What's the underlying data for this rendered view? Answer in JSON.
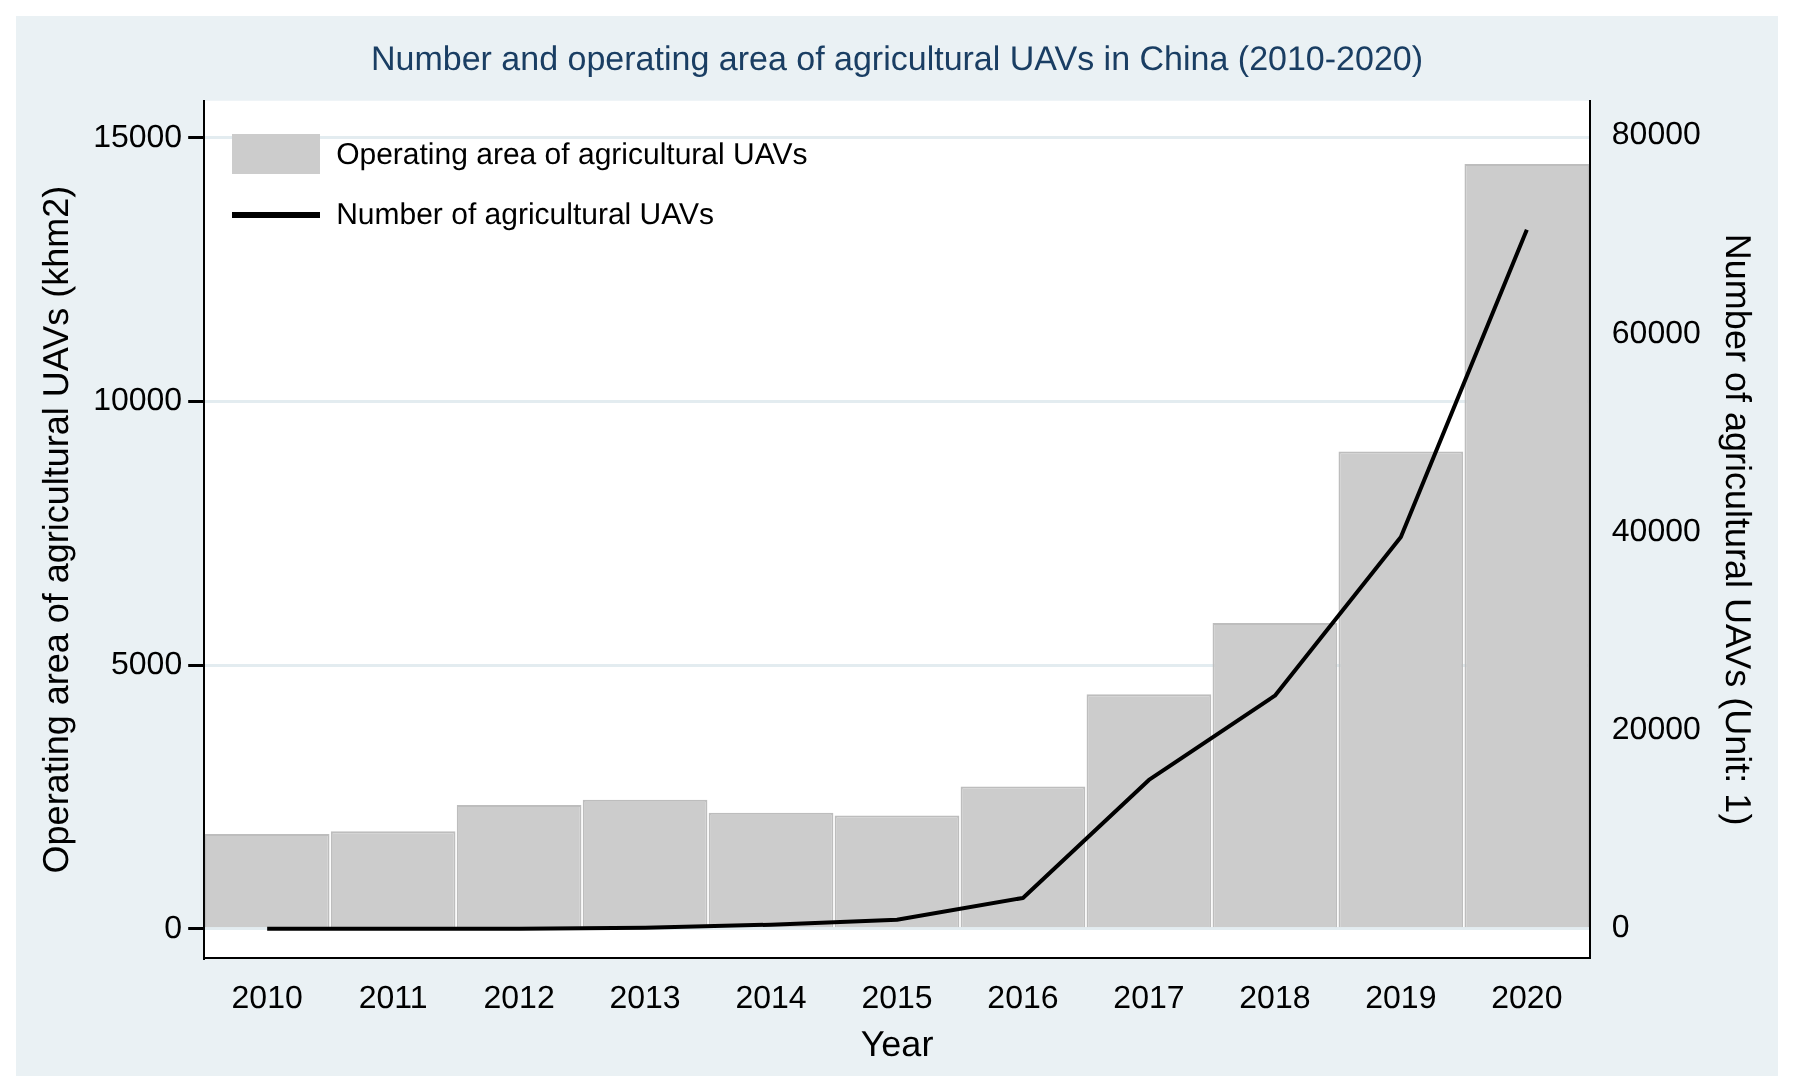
{
  "chart_data": {
    "type": "bar",
    "title": "Number and operating area of agricultural UAVs in China (2010-2020)",
    "xlabel": "Year",
    "ylabel": "Operating area of agricultural UAVs (khm2)",
    "y2label": "Number of agricultural UAVs (Unit: 1)",
    "categories": [
      "2010",
      "2011",
      "2012",
      "2013",
      "2014",
      "2015",
      "2016",
      "2017",
      "2018",
      "2019",
      "2020"
    ],
    "series": [
      {
        "name": "Operating area of agricultural UAVs",
        "type": "bar",
        "color": "#cccccc",
        "values": [
          1800,
          1850,
          2350,
          2450,
          2200,
          2150,
          2700,
          4450,
          5800,
          9050,
          14500
        ]
      },
      {
        "name": "Number of agricultural UAVs",
        "type": "line",
        "axis": "y2",
        "color": "#000000",
        "values": [
          0,
          0,
          0,
          100,
          400,
          900,
          3100,
          15000,
          23500,
          39500,
          70500
        ]
      }
    ],
    "ylim": [
      -560,
      15700
    ],
    "yticks": [
      0,
      5000,
      10000,
      15000
    ],
    "y2lim": [
      -3000,
      83500
    ],
    "y2ticks": [
      0,
      20000,
      40000,
      60000,
      80000
    ],
    "grid": "y",
    "legend": "top left",
    "marker": "none",
    "line_style": "solid"
  }
}
